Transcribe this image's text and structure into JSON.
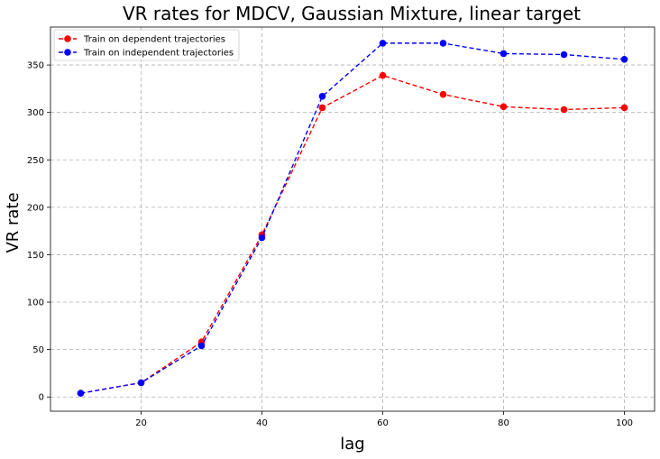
{
  "chart_data": {
    "type": "line",
    "title": "VR rates for MDCV, Gaussian Mixture, linear target",
    "xlabel": "lag",
    "ylabel": "VR rate",
    "x": [
      10,
      20,
      30,
      40,
      50,
      60,
      70,
      80,
      90,
      100
    ],
    "xlim": [
      5,
      105
    ],
    "ylim": [
      -15,
      390
    ],
    "xticks": [
      20,
      40,
      60,
      80,
      100
    ],
    "yticks": [
      0,
      50,
      100,
      150,
      200,
      250,
      300,
      350
    ],
    "grid": true,
    "legend_position": "upper-left",
    "series": [
      {
        "name": "Train on dependent trajectories",
        "color": "#ff0000",
        "style": "dashed-with-circles",
        "values": [
          4,
          15,
          58,
          171,
          305,
          339,
          319,
          306,
          303,
          305
        ]
      },
      {
        "name": "Train on independent trajectories",
        "color": "#0000ff",
        "style": "dashed-with-circles",
        "values": [
          4,
          15,
          54,
          168,
          317,
          373,
          373,
          362,
          361,
          356
        ]
      }
    ]
  }
}
